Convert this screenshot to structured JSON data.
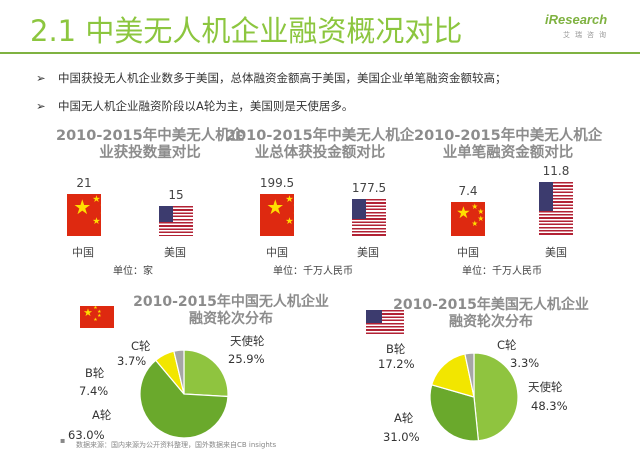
{
  "header": {
    "title": "2.1 中美无人机企业融资概况对比",
    "logo_text": "iResearch",
    "logo_sub": "艾瑞咨询"
  },
  "bullets": [
    "中国获投无人机企业数多于美国，总体融资金额高于美国，美国企业单笔融资金额较高；",
    "中国无人机企业融资阶段以A轮为主，美国则是天使居多。"
  ],
  "bullet_marker": "➢",
  "chart_data": [
    {
      "type": "bar",
      "title_lines": [
        "2010-2015年中美无人机企",
        "业获投数量对比"
      ],
      "categories": [
        "中国",
        "美国"
      ],
      "values": [
        21,
        15
      ],
      "value_labels": [
        "21",
        "15"
      ],
      "unit": "单位：家"
    },
    {
      "type": "bar",
      "title_lines": [
        "2010-2015年中美无人机企",
        "业总体获投金额对比"
      ],
      "categories": [
        "中国",
        "美国"
      ],
      "values": [
        199.5,
        177.5
      ],
      "value_labels": [
        "199.5",
        "177.5"
      ],
      "unit": "单位：千万人民币"
    },
    {
      "type": "bar",
      "title_lines": [
        "2010-2015年中美无人机企",
        "业单笔融资金额对比"
      ],
      "categories": [
        "中国",
        "美国"
      ],
      "values": [
        7.4,
        11.8
      ],
      "value_labels": [
        "7.4",
        "11.8"
      ],
      "unit": "单位：千万人民币"
    },
    {
      "type": "pie",
      "title_lines": [
        "2010-2015年中国无人机企业",
        "融资轮次分布"
      ],
      "slices": [
        {
          "label": "天使轮",
          "value": 25.9,
          "value_label": "25.9%",
          "color": "#8fc43f"
        },
        {
          "label": "A轮",
          "value": 63.0,
          "value_label": "63.0%",
          "color": "#6aa92c"
        },
        {
          "label": "B轮",
          "value": 7.4,
          "value_label": "7.4%",
          "color": "#f2e600"
        },
        {
          "label": "C轮",
          "value": 3.7,
          "value_label": "3.7%",
          "color": "#a6a6a6"
        }
      ]
    },
    {
      "type": "pie",
      "title_lines": [
        "2010-2015年美国无人机企业",
        "融资轮次分布"
      ],
      "slices": [
        {
          "label": "天使轮",
          "value": 48.3,
          "value_label": "48.3%",
          "color": "#8fc43f"
        },
        {
          "label": "A轮",
          "value": 31.0,
          "value_label": "31.0%",
          "color": "#6aa92c"
        },
        {
          "label": "B轮",
          "value": 17.2,
          "value_label": "17.2%",
          "color": "#f2e600"
        },
        {
          "label": "C轮",
          "value": 3.3,
          "value_label": "3.3%",
          "color": "#a6a6a6"
        }
      ]
    }
  ],
  "footer": {
    "marker": "▪",
    "source": "数据来源：国内来源为公开资料整理，国外数据来自CB insights"
  }
}
